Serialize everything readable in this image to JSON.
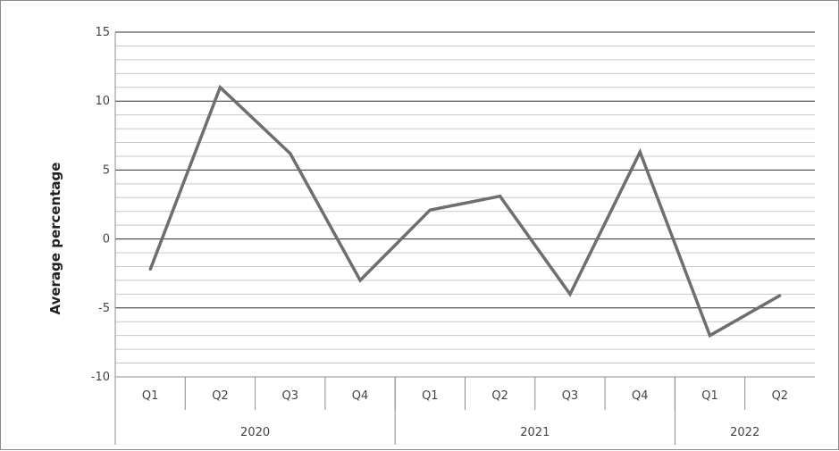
{
  "chart_data": {
    "type": "line",
    "title": "",
    "xlabel": "",
    "ylabel": "Average percentage",
    "ylim": [
      -10,
      15
    ],
    "y_ticks": [
      "15",
      "10",
      "5",
      "0",
      "-5",
      "-10"
    ],
    "categories": [
      "Q1",
      "Q2",
      "Q3",
      "Q4",
      "Q1",
      "Q2",
      "Q3",
      "Q4",
      "Q1",
      "Q2"
    ],
    "groups": [
      {
        "label": "2020",
        "count": 4
      },
      {
        "label": "2021",
        "count": 4
      },
      {
        "label": "2022",
        "count": 2
      }
    ],
    "series": [
      {
        "values": [
          -2.2,
          11.0,
          6.2,
          -3.0,
          2.1,
          3.1,
          -4.0,
          6.3,
          -7.0,
          -4.1
        ]
      }
    ],
    "grid": true,
    "legend": "none",
    "colors": {
      "line": "#6e6e6e",
      "major_grid": "#2b2b2b",
      "minor_grid": "#c8c8c8",
      "axis": "#8c8c8c"
    }
  }
}
